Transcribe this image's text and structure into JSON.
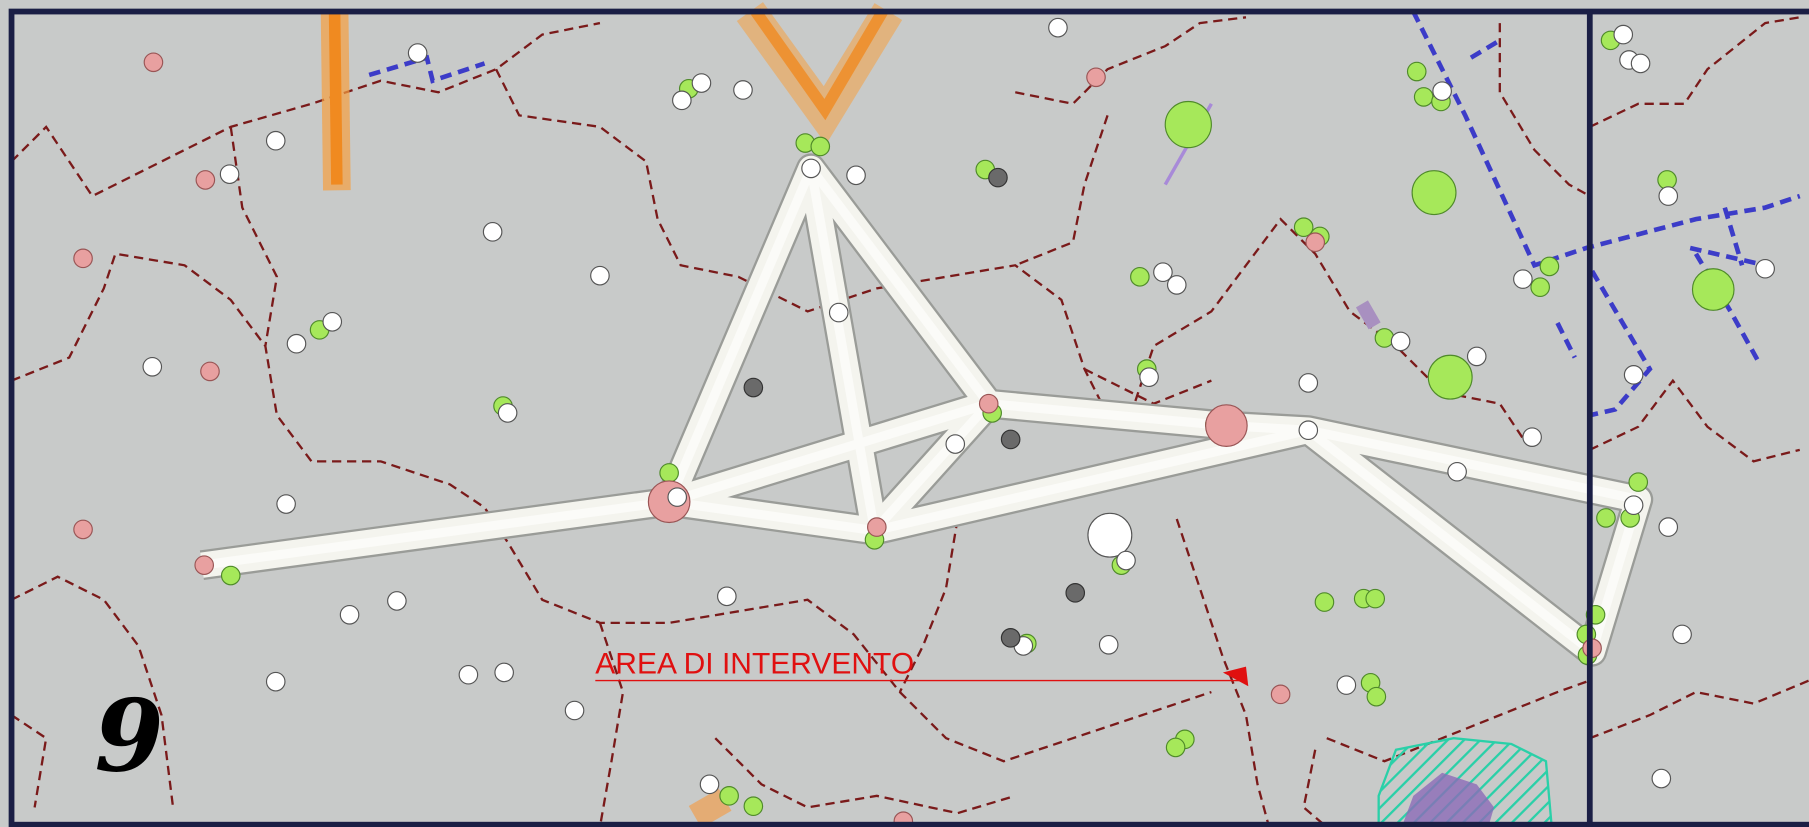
{
  "map": {
    "label": "AREA DI INTERVENTO",
    "sheet_number": "9"
  }
}
